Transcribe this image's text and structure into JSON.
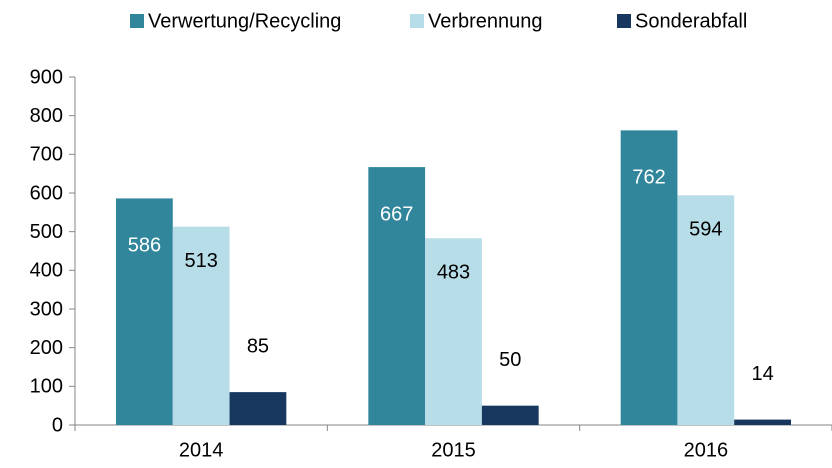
{
  "chart_data": {
    "type": "bar",
    "categories": [
      "2014",
      "2015",
      "2016"
    ],
    "series": [
      {
        "name": "Verwertung/Recycling",
        "color": "#31869b",
        "label_color": "#ffffff",
        "values": [
          586,
          667,
          762
        ]
      },
      {
        "name": "Verbrennung",
        "color": "#b7dde8",
        "label_color": "#000000",
        "values": [
          513,
          483,
          594
        ]
      },
      {
        "name": "Sonderabfall",
        "color": "#17375e",
        "label_color": "#000000",
        "values": [
          85,
          50,
          14
        ]
      }
    ],
    "ylim": [
      0,
      900
    ],
    "yticks": [
      0,
      100,
      200,
      300,
      400,
      500,
      600,
      700,
      800,
      900
    ],
    "grid": false,
    "legend": "top"
  }
}
